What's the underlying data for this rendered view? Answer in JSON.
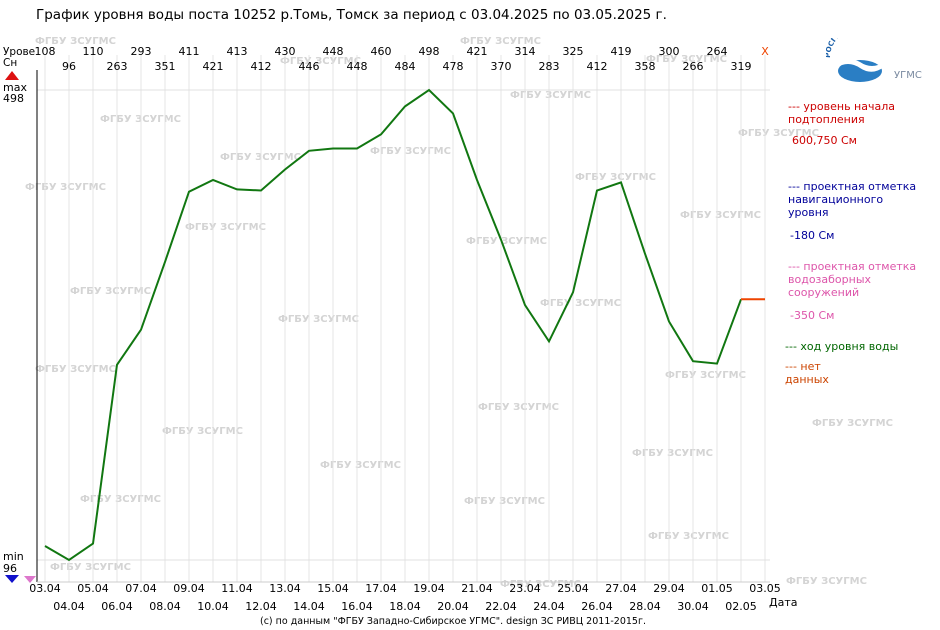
{
  "title": "График уровня воды поста 10252 р.Томь, Томск за период с 03.04.2025 по 03.05.2025 г.",
  "footer": "(с) по данным \"ФГБУ Западно-Сибирское УГМС\". design ЗС РИВЦ 2011-2015г.",
  "y_axis": {
    "label_line1": "Урове",
    "label_line2": "Сн",
    "max_label": "max",
    "max_value": "498",
    "min_label": "min",
    "min_value": "96"
  },
  "x_axis_label": "Дата",
  "no_data_marker": "X",
  "logo": {
    "name": "РОСГИДРОМЕТ",
    "suffix": "УГМС"
  },
  "watermark": "ФГБУ ЗСУГМС",
  "legend": {
    "flood": {
      "title": "--- уровень начала подтопления",
      "value": "600,750 См",
      "color": "#cc0000"
    },
    "navigation": {
      "title": "--- проектная отметка навигационного уровня",
      "value": "-180 См",
      "color": "#000099"
    },
    "intake": {
      "title": "--- проектная отметка водозаборных сооружений",
      "value": "-350 См",
      "color": "#dd55aa"
    },
    "level": {
      "title": "--- ход уровня воды",
      "color": "#006600"
    },
    "nodata": {
      "title": "--- нет данных",
      "color": "#cc4400"
    }
  },
  "chart_data": {
    "type": "line",
    "title": "График уровня воды поста 10252 р.Томь, Томск за период с 03.04.2025 по 03.05.2025 г.",
    "xlabel": "Дата",
    "ylabel": "Урове Сн",
    "x": [
      "03.04",
      "04.04",
      "05.04",
      "06.04",
      "07.04",
      "08.04",
      "09.04",
      "10.04",
      "11.04",
      "12.04",
      "13.04",
      "14.04",
      "15.04",
      "16.04",
      "17.04",
      "18.04",
      "19.04",
      "20.04",
      "21.04",
      "22.04",
      "23.04",
      "24.04",
      "25.04",
      "26.04",
      "27.04",
      "28.04",
      "29.04",
      "30.04",
      "01.05",
      "02.05",
      "03.05"
    ],
    "series": [
      {
        "name": "ход уровня воды",
        "color": "#117711",
        "values": [
          108,
          96,
          110,
          263,
          293,
          351,
          411,
          421,
          413,
          412,
          430,
          446,
          448,
          448,
          460,
          484,
          498,
          478,
          421,
          370,
          314,
          283,
          325,
          412,
          419,
          358,
          300,
          266,
          264,
          319,
          null
        ]
      }
    ],
    "top_values": [
      "108",
      "96",
      "110",
      "263",
      "293",
      "351",
      "411",
      "421",
      "413",
      "412",
      "430",
      "446",
      "448",
      "448",
      "460",
      "484",
      "498",
      "478",
      "421",
      "370",
      "314",
      "283",
      "325",
      "412",
      "419",
      "358",
      "300",
      "266",
      "264",
      "319",
      "X"
    ],
    "nodata_segment": {
      "from": "02.05",
      "to": "03.05",
      "value": 319,
      "color": "#ee4400"
    },
    "ylim": [
      96,
      498
    ],
    "grid": true
  }
}
